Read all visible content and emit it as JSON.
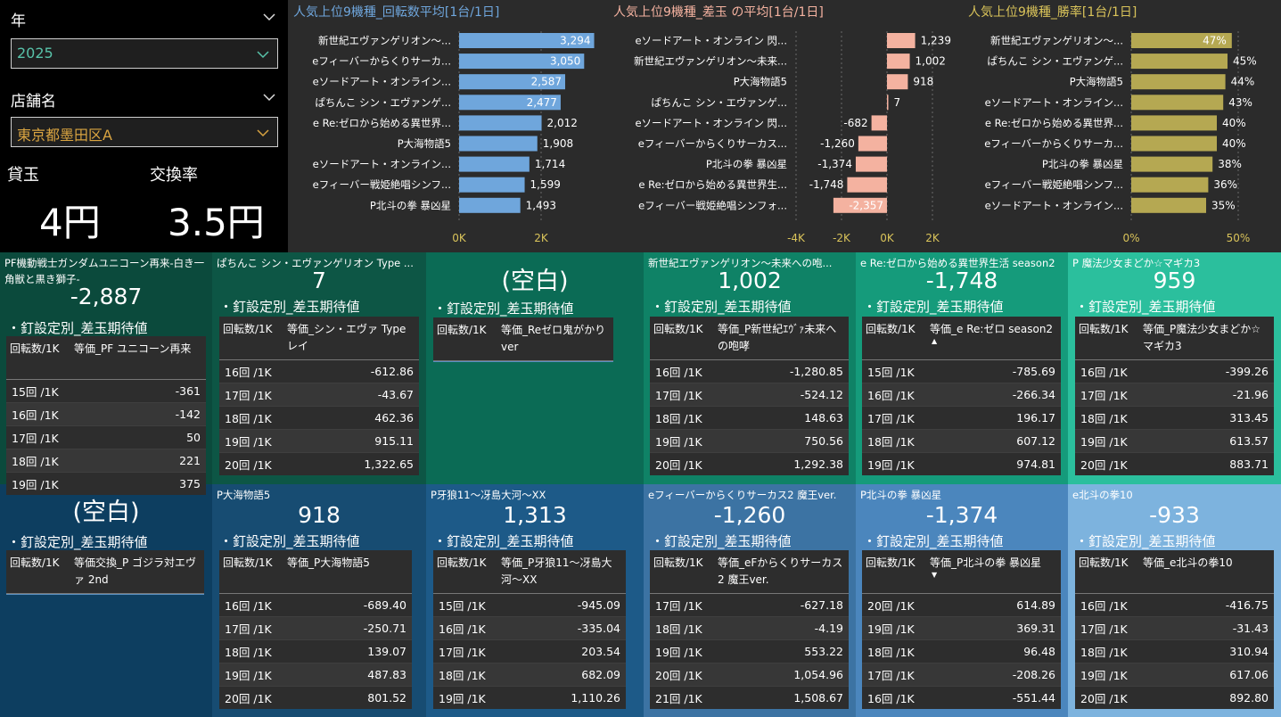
{
  "filters": {
    "year_label": "年",
    "year_value": "2025",
    "store_label": "店舗名",
    "store_value": "東京都墨田区A",
    "lend_label": "貸玉",
    "lend_value": "4円",
    "exchange_label": "交換率",
    "exchange_value": "3.5円"
  },
  "colors": {
    "spins_bar": "#6fa6dc",
    "diff_bar": "#f4b2a0",
    "winrate_bar": "#b5a852",
    "year_accent": "#58c2a9",
    "store_accent": "#d9a441"
  },
  "chart_data": [
    {
      "type": "bar",
      "orientation": "horizontal",
      "title": "人気上位9機種_回転数平均[1台/1日]",
      "categories": [
        "新世紀エヴァンゲリオン〜...",
        "eフィーバーからくりサーカ...",
        "eソードアート・オンライン...",
        "ぱちんこ シン・エヴァンゲ...",
        "e Re:ゼロから始める異世界...",
        "P大海物語5",
        "eソードアート・オンライン...",
        "eフィーバー戦姫絶唱シンフ...",
        "P北斗の拳 暴凶星"
      ],
      "values": [
        3294,
        3050,
        2587,
        2477,
        2012,
        1908,
        1714,
        1599,
        1493
      ],
      "labels": [
        "3,294",
        "3,050",
        "2,587",
        "2,477",
        "2,012",
        "1,908",
        "1,714",
        "1,599",
        "1,493"
      ],
      "ticks": [
        "0K",
        "2K"
      ],
      "xlim": [
        0,
        3500
      ]
    },
    {
      "type": "bar",
      "orientation": "horizontal",
      "title": "人気上位9機種_差玉 の平均[1台/1日]",
      "categories": [
        "eソードアート・オンライン 閃...",
        "新世紀エヴァンゲリオン〜未来...",
        "P大海物語5",
        "ぱちんこ シン・エヴァンゲ...",
        "eソードアート・オンライン 閃...",
        "eフィーバーからくりサーカス...",
        "P北斗の拳 暴凶星",
        "e Re:ゼロから始める異世界生...",
        "eフィーバー戦姫絶唱シンフォ..."
      ],
      "values": [
        1239,
        1002,
        918,
        7,
        -682,
        -1260,
        -1374,
        -1748,
        -2357
      ],
      "labels": [
        "1,239",
        "1,002",
        "918",
        "7",
        "-682",
        "-1,260",
        "-1,374",
        "-1,748",
        "-2,357"
      ],
      "ticks": [
        "-4K",
        "-2K",
        "0K",
        "2K"
      ],
      "xlim": [
        -4200,
        2300
      ]
    },
    {
      "type": "bar",
      "orientation": "horizontal",
      "title": "人気上位9機種_勝率[1台/1日]",
      "categories": [
        "新世紀エヴァンゲリオン〜...",
        "ぱちんこ シン・エヴァンゲ...",
        "P大海物語5",
        "eソードアート・オンライン...",
        "e Re:ゼロから始める異世界...",
        "eフィーバーからくりサーカ...",
        "P北斗の拳 暴凶星",
        "eフィーバー戦姫絶唱シンフ...",
        "eソードアート・オンライン..."
      ],
      "values": [
        47,
        45,
        44,
        43,
        40,
        40,
        38,
        36,
        35
      ],
      "labels": [
        "47%",
        "45%",
        "44%",
        "43%",
        "40%",
        "40%",
        "38%",
        "36%",
        "35%"
      ],
      "ticks": [
        "0%",
        "50%"
      ],
      "xlim": [
        0,
        55
      ]
    }
  ],
  "tiles": [
    {
      "name": "PF機動戦士ガンダムユニコーン再来-白き一角獣と黒き獅子-",
      "value": "-2,887",
      "subtitle": "・釘設定別_差玉期待値",
      "col1": "回転数/1K",
      "col2": "等価_PF ユニコーン再来",
      "rows": [
        [
          "15回 /1K",
          "-361"
        ],
        [
          "16回 /1K",
          "-142"
        ],
        [
          "17回 /1K",
          "50"
        ],
        [
          "18回 /1K",
          "221"
        ],
        [
          "19回 /1K",
          "375"
        ]
      ]
    },
    {
      "name": "ぱちんこ シン・エヴァンゲリオン Type ...",
      "value": "7",
      "subtitle": "・釘設定別_差玉期待値",
      "col1": "回転数/1K",
      "col2": "等価_シン・エヴァ Type レイ",
      "rows": [
        [
          "16回 /1K",
          "-612.86"
        ],
        [
          "17回 /1K",
          "-43.67"
        ],
        [
          "18回 /1K",
          "462.36"
        ],
        [
          "19回 /1K",
          "915.11"
        ],
        [
          "20回 /1K",
          "1,322.65"
        ]
      ]
    },
    {
      "name": "",
      "value": "(空白)",
      "subtitle": "・釘設定別_差玉期待値",
      "col1": "回転数/1K",
      "col2": "等価_Reゼロ鬼がかりver",
      "rows": []
    },
    {
      "name": "新世紀エヴァンゲリオン〜未来への咆...",
      "value": "1,002",
      "subtitle": "・釘設定別_差玉期待値",
      "col1": "回転数/1K",
      "col2": "等価_P新世紀ｴｳﾞｧ未来への咆哮",
      "rows": [
        [
          "16回 /1K",
          "-1,280.85"
        ],
        [
          "17回 /1K",
          "-524.12"
        ],
        [
          "18回 /1K",
          "148.63"
        ],
        [
          "19回 /1K",
          "750.56"
        ],
        [
          "20回 /1K",
          "1,292.38"
        ]
      ]
    },
    {
      "name": "e Re:ゼロから始める異世界生活 season2",
      "value": "-1,748",
      "subtitle": "・釘設定別_差玉期待値",
      "col1": "回転数/1K",
      "col2": "等価_e Re:ゼロ season2",
      "sort": "▲",
      "rows": [
        [
          "15回 /1K",
          "-785.69"
        ],
        [
          "16回 /1K",
          "-266.34"
        ],
        [
          "17回 /1K",
          "196.17"
        ],
        [
          "18回 /1K",
          "607.12"
        ],
        [
          "19回 /1K",
          "974.81"
        ]
      ]
    },
    {
      "name": "P 魔法少女まどか☆マギカ3",
      "value": "959",
      "subtitle": "・釘設定別_差玉期待値",
      "col1": "回転数/1K",
      "col2": "等価_P魔法少女まどか☆マギカ3",
      "rows": [
        [
          "16回 /1K",
          "-399.26"
        ],
        [
          "17回 /1K",
          "-21.96"
        ],
        [
          "18回 /1K",
          "313.45"
        ],
        [
          "19回 /1K",
          "613.57"
        ],
        [
          "20回 /1K",
          "883.71"
        ]
      ]
    },
    {
      "name": "",
      "value": "(空白)",
      "subtitle": "・釘設定別_差玉期待値",
      "col1": "回転数/1K",
      "col2": "等価交換_P ゴジラ対エヴァ 2nd",
      "rows": []
    },
    {
      "name": "P大海物語5",
      "value": "918",
      "subtitle": "・釘設定別_差玉期待値",
      "col1": "回転数/1K",
      "col2": "等価_P大海物語5",
      "rows": [
        [
          "16回 /1K",
          "-689.40"
        ],
        [
          "17回 /1K",
          "-250.71"
        ],
        [
          "18回 /1K",
          "139.07"
        ],
        [
          "19回 /1K",
          "487.83"
        ],
        [
          "20回 /1K",
          "801.52"
        ]
      ]
    },
    {
      "name": "P牙狼11〜冴島大河〜XX",
      "value": "1,313",
      "subtitle": "・釘設定別_差玉期待値",
      "col1": "回転数/1K",
      "col2": "等価_P牙狼11〜冴島大河〜XX",
      "rows": [
        [
          "15回 /1K",
          "-945.09"
        ],
        [
          "16回 /1K",
          "-335.04"
        ],
        [
          "17回 /1K",
          "203.54"
        ],
        [
          "18回 /1K",
          "682.09"
        ],
        [
          "19回 /1K",
          "1,110.26"
        ]
      ]
    },
    {
      "name": "eフィーバーからくりサーカス2 魔王ver.",
      "value": "-1,260",
      "subtitle": "・釘設定別_差玉期待値",
      "col1": "回転数/1K",
      "col2": "等価_eFからくりサーカス2 魔王ver.",
      "rows": [
        [
          "17回 /1K",
          "-627.18"
        ],
        [
          "18回 /1K",
          "-4.19"
        ],
        [
          "19回 /1K",
          "553.22"
        ],
        [
          "20回 /1K",
          "1,054.96"
        ],
        [
          "21回 /1K",
          "1,508.67"
        ]
      ]
    },
    {
      "name": "P北斗の拳 暴凶星",
      "value": "-1,374",
      "subtitle": "・釘設定別_差玉期待値",
      "col1": "回転数/1K",
      "col2": "等価_P北斗の拳 暴凶星",
      "sort": "▼",
      "rows": [
        [
          "20回 /1K",
          "614.89"
        ],
        [
          "19回 /1K",
          "369.31"
        ],
        [
          "18回 /1K",
          "96.48"
        ],
        [
          "17回 /1K",
          "-208.26"
        ],
        [
          "16回 /1K",
          "-551.44"
        ]
      ]
    },
    {
      "name": "e北斗の拳10",
      "value": "-933",
      "subtitle": "・釘設定別_差玉期待値",
      "col1": "回転数/1K",
      "col2": "等価_e北斗の拳10",
      "rows": [
        [
          "16回 /1K",
          "-416.75"
        ],
        [
          "17回 /1K",
          "-31.43"
        ],
        [
          "18回 /1K",
          "310.94"
        ],
        [
          "19回 /1K",
          "617.06"
        ],
        [
          "20回 /1K",
          "892.80"
        ]
      ]
    }
  ]
}
